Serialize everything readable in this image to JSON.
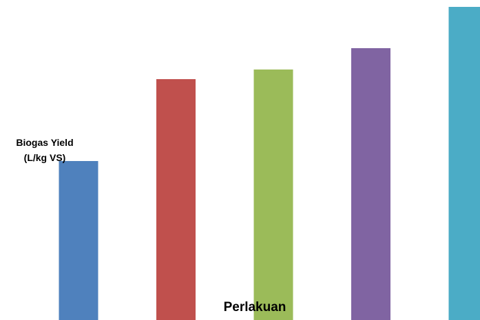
{
  "chart_data": {
    "type": "bar",
    "categories": [
      "",
      "",
      "",
      "",
      ""
    ],
    "values": [
      231,
      350,
      364,
      395,
      455
    ],
    "colors": [
      "#4F81BD",
      "#C0504D",
      "#9BBB59",
      "#8064A2",
      "#4BACC6"
    ],
    "title": "",
    "xlabel": "Perlakuan",
    "ylabel_lines": [
      "Biogas Yield",
      "(L/kg VS)"
    ],
    "ylim": [
      0,
      455
    ],
    "grid": false,
    "legend": "none"
  }
}
